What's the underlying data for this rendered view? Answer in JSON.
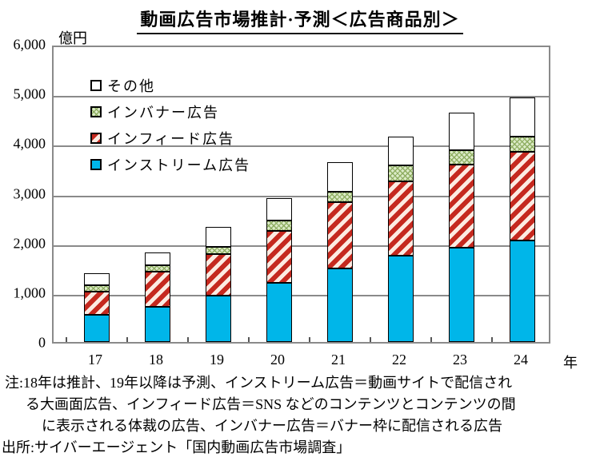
{
  "title": "動画広告市場推計·予測＜広告商品別＞",
  "y_unit": "億円",
  "x_unit": "年",
  "chart_data": {
    "type": "bar",
    "stacked": true,
    "title": "動画広告市場推計·予測＜広告商品別＞",
    "ylabel": "億円",
    "xlabel": "年",
    "categories": [
      "17",
      "18",
      "19",
      "20",
      "21",
      "22",
      "23",
      "24"
    ],
    "series": [
      {
        "name": "インストリーム広告",
        "pattern": "solid",
        "values": [
          550,
          700,
          930,
          1190,
          1480,
          1730,
          1900,
          2040
        ]
      },
      {
        "name": "インフィード広告",
        "pattern": "stripes",
        "values": [
          470,
          710,
          840,
          1050,
          1330,
          1500,
          1670,
          1790
        ]
      },
      {
        "name": "インバナー広告",
        "pattern": "crosshatch",
        "values": [
          130,
          140,
          150,
          200,
          220,
          320,
          290,
          310
        ]
      },
      {
        "name": "その他",
        "pattern": "none",
        "values": [
          230,
          250,
          390,
          460,
          590,
          590,
          750,
          790
        ]
      }
    ],
    "totals": [
      1380,
      1800,
      2310,
      2900,
      3620,
      4140,
      4610,
      4930
    ],
    "ylim": [
      0,
      6000
    ],
    "ytick_interval": 1000,
    "yticklabels": [
      "0",
      "1,000",
      "2,000",
      "3,000",
      "4,000",
      "5,000",
      "6,000"
    ],
    "grid": true,
    "legend_position": "top-left-inside",
    "legend_order": [
      3,
      2,
      1,
      0
    ]
  },
  "colors": {
    "instream_cyan": "#00b6e9",
    "infeed_red": "#c5291f",
    "infeed_light": "#fcebe2",
    "inbanner_green_bg": "#dcebc8",
    "inbanner_green_line": "#8fae62",
    "other_white": "#ffffff",
    "grid_gray": "#8a8a8a",
    "bar_border": "#000000"
  },
  "notes": {
    "lines": [
      "注:18年は推計、19年以降は予測、インストリーム広告＝動画サイトで配信され",
      "る大画面広告、インフィード広告＝SNS などのコンテンツとコンテンツの間",
      "に表示される体裁の広告、インバナー広告＝バナー枠に配信される広告",
      "出所:サイバーエージェント「国内動画広告市場調査」"
    ]
  }
}
